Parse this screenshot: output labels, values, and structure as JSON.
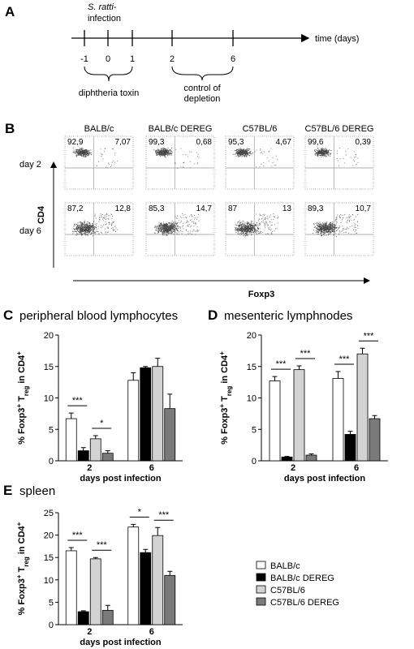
{
  "panel_a": {
    "label": "A",
    "infection": [
      "S. ratti-",
      "infection"
    ],
    "ticks": [
      -1,
      0,
      1,
      2,
      6
    ],
    "axis_label": "time (days)",
    "treatment": "diphtheria toxin",
    "control": [
      "control of",
      "depletion"
    ]
  },
  "panel_b": {
    "label": "B",
    "columns": [
      "BALB/c",
      "BALB/c DEREG",
      "C57BL/6",
      "C57BL/6 DEREG"
    ],
    "rows": [
      "day 2",
      "day 6"
    ],
    "ylabel": "CD4",
    "xlabel": "Foxp3",
    "quadrants": [
      [
        [
          "92,9",
          "7,07"
        ],
        [
          "99,3",
          "0,68"
        ],
        [
          "95,3",
          "4,67"
        ],
        [
          "99,6",
          "0,39"
        ]
      ],
      [
        [
          "87,2",
          "12,8"
        ],
        [
          "85,3",
          "14,7"
        ],
        [
          "87",
          "13"
        ],
        [
          "89,3",
          "10,7"
        ]
      ]
    ]
  },
  "chart_data": [
    {
      "type": "bar",
      "label": "C",
      "title": "peripheral blood lymphocytes",
      "ylabel": [
        "% Foxp3",
        "+",
        " T",
        "reg",
        " in CD4",
        "+"
      ],
      "xlabel": "days post infection",
      "categories": [
        "2",
        "6"
      ],
      "ylim": [
        0,
        20
      ],
      "yticks": [
        0,
        5,
        10,
        15,
        20
      ],
      "series": [
        {
          "name": "BALB/c",
          "color": "#ffffff",
          "values": [
            6.7,
            12.8
          ],
          "errors": [
            0.9,
            1.2
          ]
        },
        {
          "name": "BALB/c DEREG",
          "color": "#000000",
          "values": [
            1.6,
            14.8
          ],
          "errors": [
            0.5,
            0.2
          ]
        },
        {
          "name": "C57BL/6",
          "color": "#d3d3d3",
          "values": [
            3.5,
            15.0
          ],
          "errors": [
            0.5,
            1.3
          ]
        },
        {
          "name": "C57BL/6 DEREG",
          "color": "#7a7a7a",
          "values": [
            1.2,
            8.3
          ],
          "errors": [
            0.4,
            2.3
          ]
        }
      ],
      "annotations": [
        {
          "label": "***",
          "category": "2",
          "between": [
            "BALB/c",
            "BALB/c DEREG"
          ]
        },
        {
          "label": "*",
          "category": "2",
          "between": [
            "C57BL/6",
            "C57BL/6 DEREG"
          ]
        }
      ]
    },
    {
      "type": "bar",
      "label": "D",
      "title": "mesenteric lymphnodes",
      "ylabel": [
        "% Foxp3",
        "+",
        " T",
        "reg",
        " in CD4",
        "+"
      ],
      "xlabel": "days post infection",
      "categories": [
        "2",
        "6"
      ],
      "ylim": [
        0,
        20
      ],
      "yticks": [
        0,
        5,
        10,
        15,
        20
      ],
      "series": [
        {
          "name": "BALB/c",
          "color": "#ffffff",
          "values": [
            12.7,
            13.1
          ],
          "errors": [
            0.7,
            1.1
          ]
        },
        {
          "name": "BALB/c DEREG",
          "color": "#000000",
          "values": [
            0.6,
            4.2
          ],
          "errors": [
            0.1,
            0.5
          ]
        },
        {
          "name": "C57BL/6",
          "color": "#d3d3d3",
          "values": [
            14.5,
            17.0
          ],
          "errors": [
            0.6,
            0.9
          ]
        },
        {
          "name": "C57BL/6 DEREG",
          "color": "#7a7a7a",
          "values": [
            0.9,
            6.7
          ],
          "errors": [
            0.2,
            0.5
          ]
        }
      ],
      "annotations": [
        {
          "label": "***",
          "category": "2",
          "between": [
            "BALB/c",
            "BALB/c DEREG"
          ]
        },
        {
          "label": "***",
          "category": "2",
          "between": [
            "C57BL/6",
            "C57BL/6 DEREG"
          ]
        },
        {
          "label": "***",
          "category": "6",
          "between": [
            "BALB/c",
            "BALB/c DEREG"
          ]
        },
        {
          "label": "***",
          "category": "6",
          "between": [
            "C57BL/6",
            "C57BL/6 DEREG"
          ]
        }
      ]
    },
    {
      "type": "bar",
      "label": "E",
      "title": "spleen",
      "ylabel": [
        "% Foxp3",
        "+",
        " T",
        "reg",
        " in CD4",
        "+"
      ],
      "xlabel": "days post infection",
      "categories": [
        "2",
        "6"
      ],
      "ylim": [
        0,
        25
      ],
      "yticks": [
        0,
        5,
        10,
        15,
        20,
        25
      ],
      "series": [
        {
          "name": "BALB/c",
          "color": "#ffffff",
          "values": [
            16.5,
            21.8
          ],
          "errors": [
            0.7,
            0.6
          ]
        },
        {
          "name": "BALB/c DEREG",
          "color": "#000000",
          "values": [
            2.9,
            16.1
          ],
          "errors": [
            0.2,
            0.7
          ]
        },
        {
          "name": "C57BL/6",
          "color": "#d3d3d3",
          "values": [
            14.7,
            19.9
          ],
          "errors": [
            0.3,
            1.8
          ]
        },
        {
          "name": "C57BL/6 DEREG",
          "color": "#7a7a7a",
          "values": [
            3.2,
            11.0
          ],
          "errors": [
            1.1,
            0.9
          ]
        }
      ],
      "annotations": [
        {
          "label": "***",
          "category": "2",
          "between": [
            "BALB/c",
            "BALB/c DEREG"
          ]
        },
        {
          "label": "***",
          "category": "2",
          "between": [
            "C57BL/6",
            "C57BL/6 DEREG"
          ]
        },
        {
          "label": "*",
          "category": "6",
          "between": [
            "BALB/c",
            "BALB/c DEREG"
          ]
        },
        {
          "label": "***",
          "category": "6",
          "between": [
            "C57BL/6",
            "C57BL/6 DEREG"
          ]
        }
      ]
    }
  ]
}
